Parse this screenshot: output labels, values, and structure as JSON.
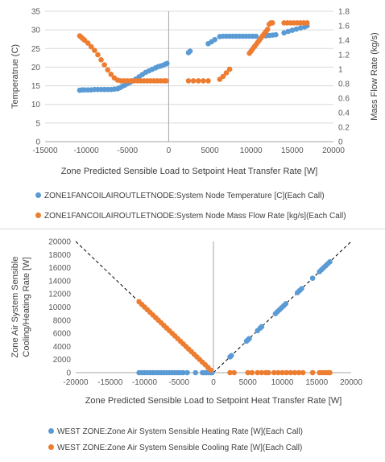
{
  "colors": {
    "blue": "#5b9bd5",
    "orange": "#ed7d31",
    "grid": "#d9d9d9",
    "axis": "#a6a6a6"
  },
  "chart_data": [
    {
      "type": "scatter",
      "xlabel": "Zone Predicted Sensible Load to Setpoint Heat Transfer Rate [W]",
      "ylabel": "Temperatrue (C)",
      "y2label": "Mass Flow Rate (kg/s)",
      "xlim": [
        -15000,
        20000
      ],
      "ylim": [
        0,
        35
      ],
      "y2lim": [
        0,
        1.8
      ],
      "xticks": [
        "-15000",
        "-10000",
        "-5000",
        "0",
        "5000",
        "10000",
        "15000",
        "20000"
      ],
      "yticks": [
        "0",
        "5",
        "10",
        "15",
        "20",
        "25",
        "30",
        "35"
      ],
      "y2ticks": [
        "0",
        "0.2",
        "0.4",
        "0.6",
        "0.8",
        "1",
        "1.2",
        "1.4",
        "1.6",
        "1.8"
      ],
      "grid": "horizontal",
      "legend_position": "bottom",
      "series": [
        {
          "name": "ZONE1FANCOILAIROUTLETNODE:System Node Temperature [C](Each Call)",
          "axis": "left",
          "color": "#5b9bd5",
          "x": [
            -10800,
            -10500,
            -10200,
            -9800,
            -9400,
            -9000,
            -8600,
            -8200,
            -7800,
            -7400,
            -7000,
            -6600,
            -6200,
            -5900,
            -5600,
            -5300,
            -5000,
            -4700,
            -4400,
            -4000,
            -3600,
            -3200,
            -2800,
            -2400,
            -2000,
            -1600,
            -1300,
            -1000,
            -700,
            -400,
            -200,
            2400,
            2600,
            4800,
            5200,
            5600,
            6200,
            6600,
            7000,
            7400,
            7800,
            8200,
            8600,
            9000,
            9400,
            9800,
            10200,
            10600,
            11800,
            12200,
            12600,
            13000,
            14000,
            14500,
            15000,
            15500,
            16000,
            16500,
            16800
          ],
          "y": [
            13.8,
            13.9,
            13.9,
            13.9,
            13.9,
            14.0,
            14.0,
            14.0,
            14.0,
            14.0,
            14.0,
            14.1,
            14.2,
            14.5,
            14.9,
            15.2,
            15.6,
            15.9,
            16.3,
            16.8,
            17.4,
            18.0,
            18.6,
            19.0,
            19.4,
            19.8,
            20.1,
            20.3,
            20.5,
            20.8,
            21.0,
            23.9,
            24.3,
            26.3,
            26.8,
            27.4,
            28.2,
            28.3,
            28.3,
            28.3,
            28.3,
            28.3,
            28.3,
            28.3,
            28.3,
            28.3,
            28.3,
            28.3,
            28.4,
            28.5,
            28.6,
            28.7,
            29.2,
            29.6,
            29.9,
            30.2,
            30.5,
            30.8,
            31.1
          ]
        },
        {
          "name": "ZONE1FANCOILAIROUTLETNODE:System Node Mass Flow Rate [kg/s](Each Call)",
          "axis": "right",
          "color": "#ed7d31",
          "x": [
            -10800,
            -10600,
            -10400,
            -10200,
            -9800,
            -9400,
            -9000,
            -8600,
            -8200,
            -7800,
            -7400,
            -7000,
            -6600,
            -6200,
            -5800,
            -5400,
            -5000,
            -4600,
            -4200,
            -3800,
            -3400,
            -3000,
            -2600,
            -2200,
            -1800,
            -1400,
            -1000,
            -600,
            -300,
            2400,
            3000,
            3600,
            4200,
            4800,
            6200,
            6600,
            7000,
            7400,
            9800,
            10000,
            10200,
            10400,
            10600,
            10800,
            11000,
            11200,
            11400,
            11600,
            11800,
            12000,
            12200,
            12400,
            12600,
            14000,
            14400,
            14800,
            15200,
            15600,
            16000,
            16400,
            16800
          ],
          "y": [
            1.46,
            1.44,
            1.42,
            1.4,
            1.36,
            1.31,
            1.26,
            1.2,
            1.13,
            1.06,
            0.99,
            0.93,
            0.88,
            0.85,
            0.84,
            0.84,
            0.84,
            0.84,
            0.84,
            0.84,
            0.84,
            0.84,
            0.84,
            0.84,
            0.84,
            0.84,
            0.84,
            0.84,
            0.84,
            0.84,
            0.84,
            0.84,
            0.84,
            0.84,
            0.86,
            0.9,
            0.95,
            1.0,
            1.22,
            1.25,
            1.28,
            1.31,
            1.34,
            1.37,
            1.4,
            1.43,
            1.46,
            1.49,
            1.52,
            1.55,
            1.62,
            1.64,
            1.64,
            1.64,
            1.64,
            1.64,
            1.64,
            1.64,
            1.64,
            1.64,
            1.64
          ]
        }
      ]
    },
    {
      "type": "scatter",
      "xlabel": "Zone Predicted Sensible Load to Setpoint Heat Transfer Rate [W]",
      "ylabel": "Zone Air System Sensible Cooling/Heating Rate [W]",
      "ylabel_lines": [
        "Zone Air System Sensible",
        "Cooling/Heating Rate [W]"
      ],
      "xlim": [
        -20000,
        20000
      ],
      "ylim": [
        0,
        20000
      ],
      "xticks": [
        "-20000",
        "-15000",
        "-10000",
        "-5000",
        "0",
        "5000",
        "10000",
        "15000",
        "20000"
      ],
      "yticks": [
        "0",
        "2000",
        "4000",
        "6000",
        "8000",
        "10000",
        "12000",
        "14000",
        "16000",
        "18000",
        "20000"
      ],
      "grid": "none",
      "legend_position": "bottom",
      "reference_lines": [
        {
          "style": "dashed",
          "from": [
            -20000,
            20000
          ],
          "to": [
            0,
            0
          ]
        },
        {
          "style": "dashed",
          "from": [
            0,
            0
          ],
          "to": [
            20000,
            20000
          ]
        }
      ],
      "series": [
        {
          "name": "WEST ZONE:Zone Air System Sensible Heating Rate [W](Each Call)",
          "color": "#5b9bd5",
          "x": [
            2400,
            2600,
            4800,
            5000,
            5200,
            6400,
            6800,
            7000,
            9000,
            9300,
            9600,
            9900,
            10200,
            10500,
            12200,
            12500,
            12800,
            14400,
            15400,
            15700,
            16000,
            16300,
            16600,
            16900,
            -10800,
            -10400,
            -10000,
            -9600,
            -9200,
            -8800,
            -8400,
            -8000,
            -7600,
            -7200,
            -6800,
            -6400,
            -6000,
            -5600,
            -5200,
            -4800,
            -4400,
            -3800,
            -2600,
            -1600,
            -1300,
            -1000,
            -700,
            -400,
            -200
          ],
          "y": [
            2400,
            2600,
            4800,
            5000,
            5200,
            6400,
            6800,
            7000,
            9000,
            9300,
            9600,
            9900,
            10200,
            10500,
            12200,
            12500,
            12800,
            14400,
            15400,
            15700,
            16000,
            16300,
            16600,
            16900,
            0,
            0,
            0,
            0,
            0,
            0,
            0,
            0,
            0,
            0,
            0,
            0,
            0,
            0,
            0,
            0,
            0,
            0,
            0,
            0,
            0,
            0,
            0,
            0,
            0
          ]
        },
        {
          "name": "WEST ZONE:Zone Air System Sensible Cooling Rate [W](Each Call)",
          "color": "#ed7d31",
          "x": [
            -10800,
            -10400,
            -10000,
            -9600,
            -9200,
            -8800,
            -8400,
            -8000,
            -7600,
            -7200,
            -6800,
            -6400,
            -6000,
            -5600,
            -5200,
            -4800,
            -4400,
            -4000,
            -3600,
            -3200,
            -2800,
            -2400,
            -2000,
            -1600,
            -1200,
            -800,
            -400,
            2400,
            3000,
            5000,
            5600,
            6400,
            7000,
            7600,
            8000,
            8800,
            9400,
            10000,
            10600,
            11200,
            11800,
            12400,
            13000,
            14400,
            15400,
            15800,
            16200,
            16600,
            16900
          ],
          "y": [
            10800,
            10400,
            10000,
            9600,
            9200,
            8800,
            8400,
            8000,
            7600,
            7200,
            6800,
            6400,
            6000,
            5600,
            5200,
            4800,
            4400,
            4000,
            3600,
            3200,
            2800,
            2400,
            2000,
            1600,
            1200,
            800,
            400,
            0,
            0,
            0,
            0,
            0,
            0,
            0,
            0,
            0,
            0,
            0,
            0,
            0,
            0,
            0,
            0,
            0,
            0,
            0,
            0,
            0,
            0
          ]
        }
      ]
    }
  ]
}
